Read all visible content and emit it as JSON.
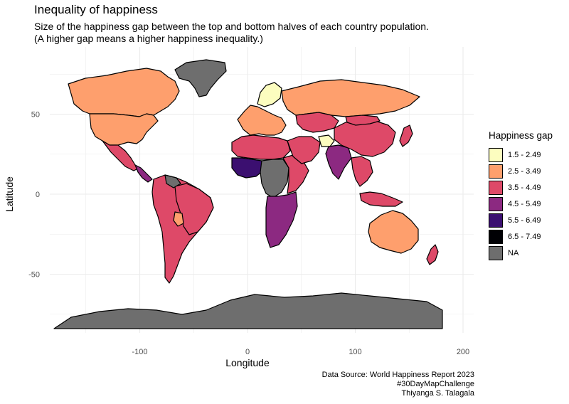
{
  "title": "Inequality of happiness",
  "subtitle_line1": "Size of the happiness gap between the top and bottom halves of each country population.",
  "subtitle_line2": "(A higher gap means a higher happiness inequality.)",
  "x_axis": {
    "label": "Longitude",
    "ticks": [
      "-100",
      "0",
      "100",
      "200"
    ],
    "tick_values": [
      -100,
      0,
      100,
      200
    ]
  },
  "y_axis": {
    "label": "Latitude",
    "ticks": [
      "50",
      "0",
      "-50"
    ],
    "tick_values": [
      50,
      0,
      -50
    ]
  },
  "legend": {
    "title": "Happiness gap",
    "items": [
      {
        "label": "1.5 - 2.49",
        "color": "#fcfdbf"
      },
      {
        "label": "2.5 - 3.49",
        "color": "#fe9f6d"
      },
      {
        "label": "3.5 - 4.49",
        "color": "#de4968"
      },
      {
        "label": "4.5 - 5.49",
        "color": "#8c2981"
      },
      {
        "label": "5.5 - 6.49",
        "color": "#3b0f70"
      },
      {
        "label": "6.5 - 7.49",
        "color": "#000004"
      },
      {
        "label": "NA",
        "color": "#6e6e6e"
      }
    ]
  },
  "caption": {
    "line1": "Data Source: World Happiness Report 2023",
    "line2": "#30DayMapChallenge",
    "line3": "Thiyanga S. Talagala"
  },
  "regions": [
    {
      "name": "Greenland",
      "class": "NA"
    },
    {
      "name": "Canada",
      "class": "2.5 - 3.49"
    },
    {
      "name": "United States",
      "class": "2.5 - 3.49"
    },
    {
      "name": "Mexico",
      "class": "3.5 - 4.49"
    },
    {
      "name": "Central America",
      "class": "4.5 - 5.49"
    },
    {
      "name": "South America",
      "class": "3.5 - 4.49"
    },
    {
      "name": "Brazil",
      "class": "3.5 - 4.49"
    },
    {
      "name": "Venezuela",
      "class": "NA"
    },
    {
      "name": "Paraguay",
      "class": "2.5 - 3.49"
    },
    {
      "name": "Western Europe",
      "class": "2.5 - 3.49"
    },
    {
      "name": "Scandinavia",
      "class": "1.5 - 2.49"
    },
    {
      "name": "Russia",
      "class": "2.5 - 3.49"
    },
    {
      "name": "Kazakhstan",
      "class": "3.5 - 4.49"
    },
    {
      "name": "North Africa",
      "class": "3.5 - 4.49"
    },
    {
      "name": "West Africa",
      "class": "5.5 - 6.49"
    },
    {
      "name": "Central Africa",
      "class": "NA"
    },
    {
      "name": "East Africa",
      "class": "3.5 - 4.49"
    },
    {
      "name": "Southern Africa",
      "class": "4.5 - 5.49"
    },
    {
      "name": "Middle East",
      "class": "3.5 - 4.49"
    },
    {
      "name": "Afghanistan",
      "class": "1.5 - 2.49"
    },
    {
      "name": "India",
      "class": "4.5 - 5.49"
    },
    {
      "name": "China",
      "class": "3.5 - 4.49"
    },
    {
      "name": "Mongolia",
      "class": "3.5 - 4.49"
    },
    {
      "name": "Southeast Asia",
      "class": "3.5 - 4.49"
    },
    {
      "name": "Japan",
      "class": "3.5 - 4.49"
    },
    {
      "name": "Indonesia",
      "class": "3.5 - 4.49"
    },
    {
      "name": "Australia",
      "class": "2.5 - 3.49"
    },
    {
      "name": "New Zealand",
      "class": "3.5 - 4.49"
    },
    {
      "name": "Antarctica",
      "class": "NA"
    }
  ]
}
